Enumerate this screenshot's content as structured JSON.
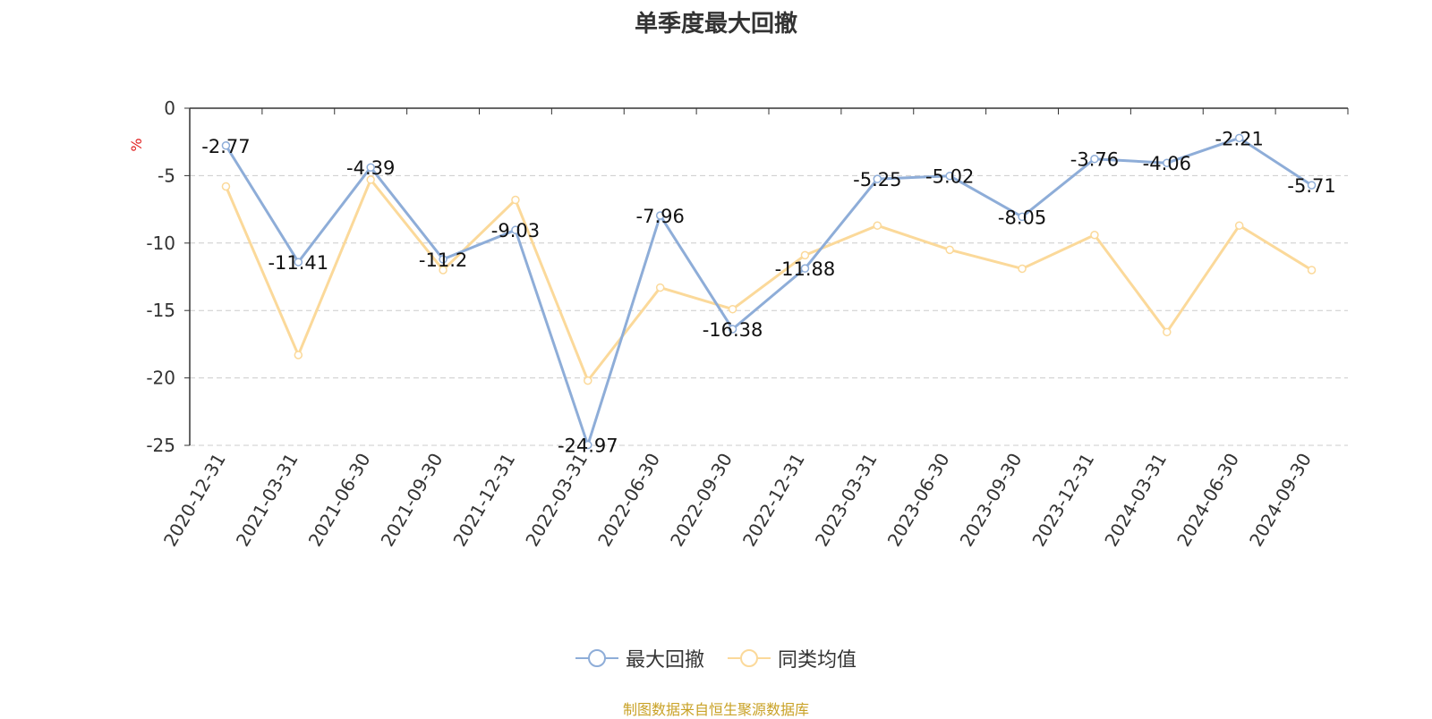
{
  "title": "单季度最大回撤",
  "source_note": "制图数据来自恒生聚源数据库",
  "colors": {
    "drawdown": "#8eadd8",
    "peer_avg": "#fbd99a",
    "axis": "#333333",
    "grid": "#cccccc",
    "unit": "#e02020"
  },
  "legend": [
    {
      "label": "最大回撤",
      "color": "#8eadd8"
    },
    {
      "label": "同类均值",
      "color": "#fbd99a"
    }
  ],
  "chart_data": {
    "type": "line",
    "title": "单季度最大回撤",
    "ylabel": "%",
    "ylim": [
      -25,
      0
    ],
    "yticks": [
      0,
      -5,
      -10,
      -15,
      -20,
      -25
    ],
    "grid": true,
    "legend_position": "bottom",
    "categories": [
      "2020-12-31",
      "2021-03-31",
      "2021-06-30",
      "2021-09-30",
      "2021-12-31",
      "2022-03-31",
      "2022-06-30",
      "2022-09-30",
      "2022-12-31",
      "2023-03-31",
      "2023-06-30",
      "2023-09-30",
      "2023-12-31",
      "2024-03-31",
      "2024-06-30",
      "2024-09-30"
    ],
    "series": [
      {
        "name": "最大回撤",
        "values": [
          -2.77,
          -11.41,
          -4.39,
          -11.2,
          -9.03,
          -24.97,
          -7.96,
          -16.38,
          -11.88,
          -5.25,
          -5.02,
          -8.05,
          -3.76,
          -4.06,
          -2.21,
          -5.71
        ],
        "labeled": true
      },
      {
        "name": "同类均值",
        "values": [
          -5.8,
          -18.3,
          -5.3,
          -12.0,
          -6.8,
          -20.2,
          -13.3,
          -14.9,
          -10.9,
          -8.7,
          -10.5,
          -11.9,
          -9.4,
          -16.6,
          -8.7,
          -12.0
        ],
        "labeled": false
      }
    ]
  }
}
